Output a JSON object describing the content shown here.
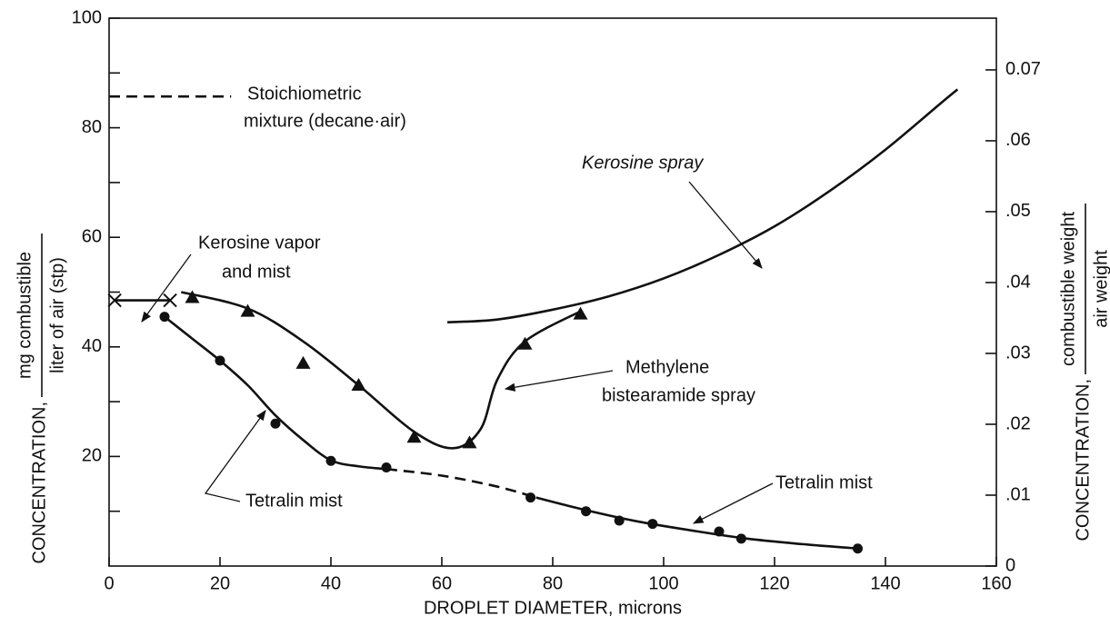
{
  "chart_data": {
    "type": "line",
    "xlabel": "DROPLET DIAMETER, microns",
    "ylabel": {
      "prefix": "CONCENTRATION,",
      "numerator": "mg combustible",
      "denominator": "liter of air (stp)"
    },
    "y2label": {
      "prefix": "CONCENTRATION,",
      "numerator": "combustible weight",
      "denominator": "air weight"
    },
    "xlim": [
      0,
      160
    ],
    "xticks": [
      0,
      20,
      40,
      60,
      80,
      100,
      120,
      140,
      160
    ],
    "ylim": [
      0,
      100
    ],
    "yticks": [
      20,
      40,
      60,
      80,
      100
    ],
    "yminor": [
      10,
      30,
      50,
      70,
      90
    ],
    "y2lim": [
      0,
      0.0773
    ],
    "y2ticks": [
      0,
      {
        "value": 0.01,
        "label": ".01"
      },
      {
        "value": 0.02,
        "label": ".02"
      },
      {
        "value": 0.03,
        "label": ".03"
      },
      {
        "value": 0.04,
        "label": ".04"
      },
      {
        "value": 0.05,
        "label": ".05"
      },
      {
        "value": 0.06,
        "label": ".06"
      },
      {
        "value": 0.07,
        "label": "0.07"
      }
    ],
    "annotations": [
      "Stoichiometric",
      "mixture (decane·air)",
      "Kerosine vapor",
      "and mist",
      "Kerosine spray",
      "Methylene",
      "bistearamide spray",
      "Tetralin mist",
      "Tetralin mist"
    ],
    "stoichiometric": {
      "x": [
        0,
        22
      ],
      "values": [
        85.7,
        85.7
      ],
      "dash": true
    },
    "series": [
      {
        "color": "#111",
        "marker": "dot",
        "x": [
          10,
          20,
          30,
          40,
          50,
          76,
          86,
          92,
          98,
          110,
          114,
          135
        ],
        "values": [
          45.5,
          37.5,
          26,
          19.2,
          18,
          12.5,
          10,
          8.3,
          7.7,
          6.3,
          5,
          3.2
        ]
      },
      {
        "color": "#111",
        "marker": "triangle",
        "x": [
          15,
          25,
          35,
          45,
          55,
          65,
          75,
          85
        ],
        "values": [
          49,
          46.5,
          37,
          33,
          23.5,
          22.5,
          40.5,
          46
        ]
      },
      {
        "color": "#111",
        "marker": "cross",
        "x": [
          1,
          11
        ],
        "values": [
          48.5,
          48.5
        ]
      },
      {
        "color": "#111",
        "line": "straight",
        "x": [
          1,
          11
        ],
        "values": [
          48.5,
          48.5
        ]
      },
      {
        "color": "#111",
        "line": "smooth",
        "x": [
          10,
          15,
          20,
          25,
          30,
          35,
          40,
          45,
          50
        ],
        "values": [
          45.5,
          41.5,
          37.5,
          33,
          27.5,
          23,
          19.3,
          18.2,
          17.7
        ]
      },
      {
        "color": "#111",
        "line": "smooth",
        "dash": true,
        "x": [
          50,
          60,
          70,
          77
        ],
        "values": [
          17.7,
          16.5,
          14.5,
          12.5
        ]
      },
      {
        "color": "#111",
        "line": "smooth",
        "x": [
          77,
          86,
          95,
          105,
          115,
          125,
          135
        ],
        "values": [
          12.5,
          10.2,
          8.2,
          6.5,
          5,
          4,
          3.2
        ]
      },
      {
        "color": "#111",
        "line": "smooth",
        "x": [
          13,
          25,
          35,
          45,
          55,
          62,
          67,
          70,
          75,
          85
        ],
        "values": [
          50,
          47,
          41,
          33,
          24.5,
          21.5,
          25,
          34,
          41,
          46.5
        ]
      },
      {
        "color": "#111",
        "line": "smooth",
        "x": [
          61,
          70,
          80,
          90,
          100,
          110,
          120,
          130,
          140,
          150,
          153
        ],
        "values": [
          44.5,
          45,
          46.8,
          49.2,
          52.5,
          56.8,
          62,
          68.5,
          76,
          84.5,
          87
        ]
      }
    ]
  }
}
